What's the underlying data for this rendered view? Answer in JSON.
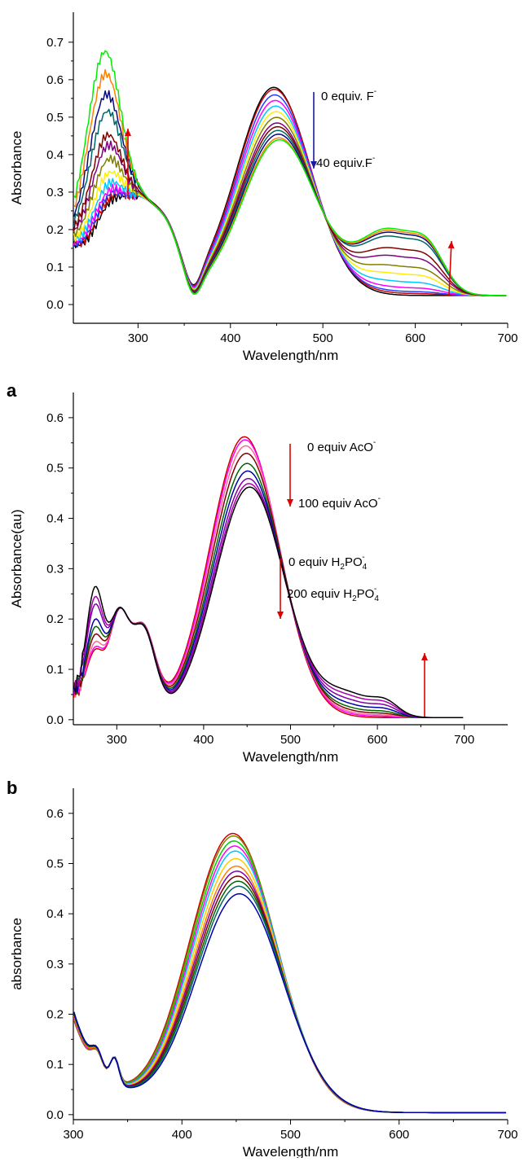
{
  "chart_data": [
    {
      "id": "top",
      "type": "line",
      "panel_letter": "",
      "xlabel": "Wavelength/nm",
      "ylabel": "Absorbance",
      "xlim": [
        230,
        700
      ],
      "ylim": [
        -0.05,
        0.78
      ],
      "xticks": [
        300,
        400,
        500,
        600,
        700
      ],
      "yticks": [
        0.0,
        0.1,
        0.2,
        0.3,
        0.4,
        0.5,
        0.6,
        0.7
      ],
      "ytick_decimals": 1,
      "annotations": [
        {
          "text": "0 equiv. F",
          "sup": "-",
          "sub": ""
        },
        {
          "text": "40 equiv.F",
          "sup": "-",
          "sub": ""
        }
      ],
      "arrow_colors": {
        "main": "#1a1aa0",
        "secondary": "#e00000"
      },
      "isosbestic": [
        {
          "x": 385,
          "y": 0.15
        },
        {
          "x": 488,
          "y": 0.32
        }
      ],
      "series_colors": [
        "#000000",
        "#cc0000",
        "#2040ff",
        "#ff00ff",
        "#00c8ff",
        "#ffee00",
        "#808000",
        "#800080",
        "#800000",
        "#006666",
        "#0a0a80",
        "#ff8000",
        "#00ee00"
      ],
      "peak_values": [
        0.555,
        0.55,
        0.535,
        0.52,
        0.505,
        0.49,
        0.475,
        0.46,
        0.45,
        0.44,
        0.43,
        0.42,
        0.415
      ],
      "uv_peak_values": [
        0.23,
        0.24,
        0.25,
        0.26,
        0.28,
        0.31,
        0.35,
        0.39,
        0.42,
        0.49,
        0.54,
        0.6,
        0.665
      ],
      "shoulder_values": [
        0.0,
        0.005,
        0.01,
        0.02,
        0.035,
        0.055,
        0.075,
        0.1,
        0.12,
        0.15,
        0.16,
        0.165,
        0.17
      ]
    },
    {
      "id": "a",
      "type": "line",
      "panel_letter": "a",
      "xlabel": "Wavelength/nm",
      "ylabel": "Absorbance(au)",
      "xlim": [
        250,
        750
      ],
      "ylim": [
        -0.01,
        0.65
      ],
      "xticks": [
        300,
        400,
        500,
        600,
        700
      ],
      "yticks": [
        0.0,
        0.1,
        0.2,
        0.3,
        0.4,
        0.5,
        0.6
      ],
      "ytick_decimals": 1,
      "annotations": [
        {
          "text": "0 equiv AcO",
          "sup": "-",
          "sub": ""
        },
        {
          "text": "100 equiv AcO",
          "sup": "-",
          "sub": ""
        }
      ],
      "arrow_colors": {
        "main": "#e00000",
        "secondary": "#e00000"
      },
      "series_colors": [
        "#cc0000",
        "#ff00ff",
        "#ff6699",
        "#800000",
        "#006600",
        "#0000aa",
        "#8000aa",
        "#aa00aa",
        "#000000"
      ],
      "peak_values": [
        0.558,
        0.552,
        0.54,
        0.525,
        0.505,
        0.49,
        0.475,
        0.465,
        0.458
      ],
      "uv_peak_values": [
        0.225,
        0.23,
        0.24,
        0.255,
        0.27,
        0.285,
        0.315,
        0.33,
        0.35
      ],
      "shoulder_values": [
        0.0,
        0.003,
        0.006,
        0.01,
        0.015,
        0.022,
        0.03,
        0.038,
        0.045
      ]
    },
    {
      "id": "b",
      "type": "line",
      "panel_letter": "b",
      "xlabel": "Wavelength/nm",
      "ylabel": "absorbance",
      "xlim": [
        300,
        700
      ],
      "ylim": [
        -0.01,
        0.65
      ],
      "xticks": [
        300,
        400,
        500,
        600,
        700
      ],
      "yticks": [
        0.0,
        0.1,
        0.2,
        0.3,
        0.4,
        0.5,
        0.6
      ],
      "ytick_decimals": 1,
      "annotations": [
        {
          "text": "0 equiv H",
          "sub": "2",
          "text2": "PO",
          "sub2": "4",
          "sup": "-"
        },
        {
          "text": "200 equiv H",
          "sub": "2",
          "text2": "PO",
          "sub2": "4",
          "sup": "-"
        }
      ],
      "arrow_colors": {
        "main": "#e00000",
        "secondary": "#e00000"
      },
      "series_colors": [
        "#cc0000",
        "#808000",
        "#00cc00",
        "#ff00ff",
        "#00c8ff",
        "#ffcc00",
        "#ff8000",
        "#8000aa",
        "#800000",
        "#006600",
        "#006666",
        "#0000aa"
      ],
      "peak_values": [
        0.555,
        0.55,
        0.54,
        0.53,
        0.52,
        0.505,
        0.49,
        0.48,
        0.47,
        0.46,
        0.45,
        0.435
      ],
      "uv_peak_values": [
        0.22,
        0.22,
        0.225,
        0.225,
        0.23,
        0.23,
        0.23,
        0.235,
        0.235,
        0.235,
        0.24,
        0.24
      ],
      "shoulder_values": []
    }
  ]
}
